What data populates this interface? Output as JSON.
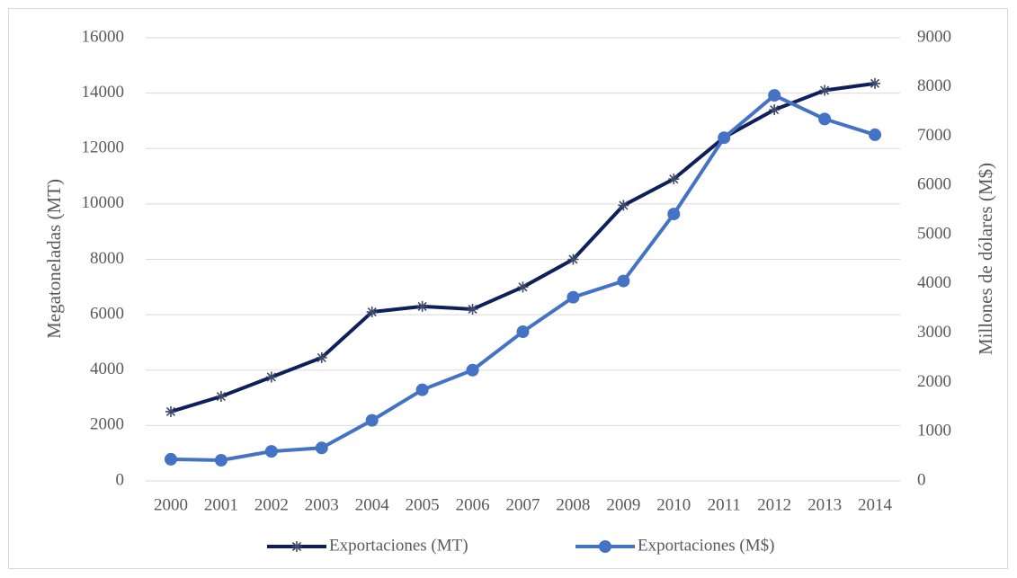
{
  "chart_data": {
    "type": "line",
    "categories": [
      "2000",
      "2001",
      "2002",
      "2003",
      "2004",
      "2005",
      "2006",
      "2007",
      "2008",
      "2009",
      "2010",
      "2011",
      "2012",
      "2013",
      "2014"
    ],
    "y_label": "Megatoneladas (MT)",
    "y2_label": "Millones de dólares (M$)",
    "ylim": [
      0,
      16000
    ],
    "yticks": [
      0,
      2000,
      4000,
      6000,
      8000,
      10000,
      12000,
      14000,
      16000
    ],
    "y2lim": [
      0,
      9000
    ],
    "y2ticks": [
      0,
      1000,
      2000,
      3000,
      4000,
      5000,
      6000,
      7000,
      8000,
      9000
    ],
    "grid": true,
    "legend": "bottom",
    "series": [
      {
        "name": "Exportaciones (MT)",
        "color": "#0e1f5b",
        "marker": "asterisk",
        "values": [
          2500,
          3050,
          3750,
          4450,
          6100,
          6300,
          6200,
          7000,
          8000,
          9950,
          10900,
          12400,
          13400,
          14100,
          14350
        ]
      },
      {
        "name": "Exportaciones (M$)",
        "color": "#4472c4",
        "marker": "circle",
        "axis": "y2",
        "values": [
          440,
          420,
          600,
          670,
          1230,
          1850,
          2250,
          3030,
          3730,
          4060,
          5420,
          6970,
          7830,
          7350,
          7030
        ]
      }
    ]
  }
}
